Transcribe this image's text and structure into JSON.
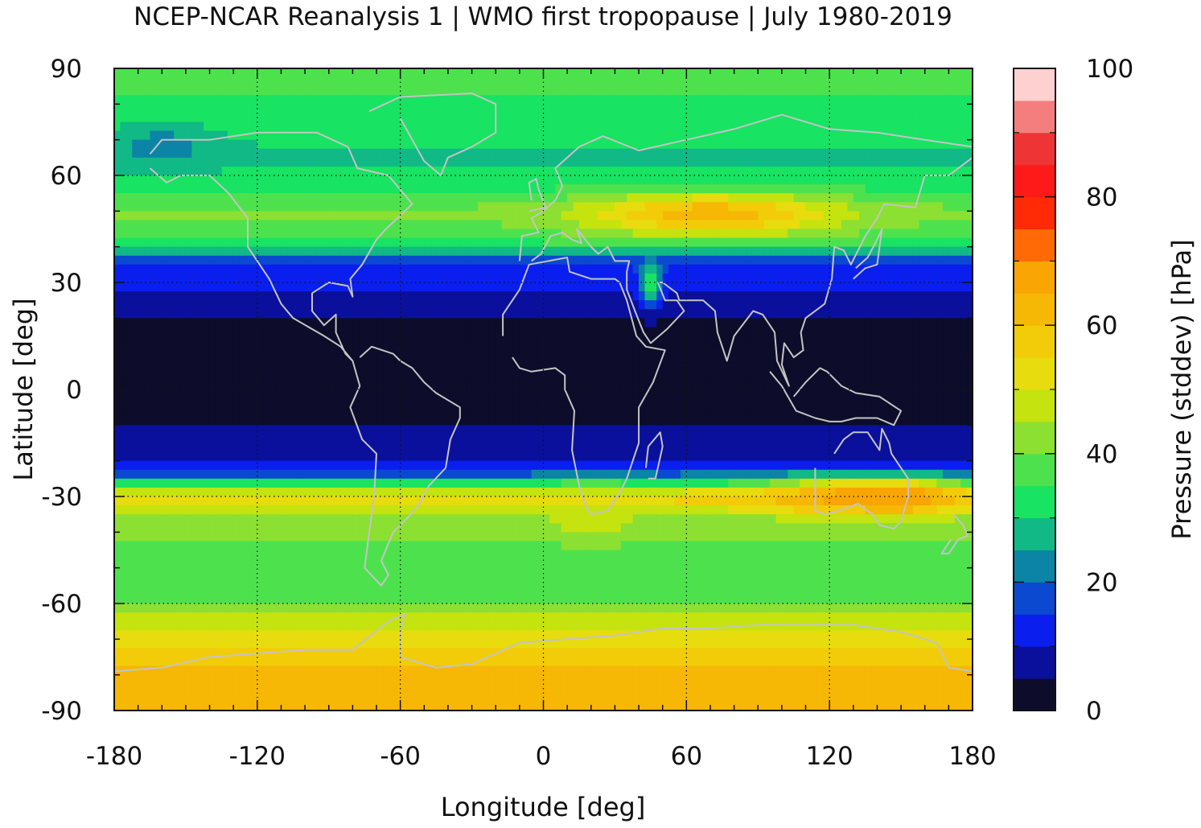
{
  "chart_data": {
    "type": "heatmap",
    "title": "NCEP-NCAR Reanalysis 1 | WMO first tropopause | July 1980-2019",
    "xlabel": "Longitude [deg]",
    "ylabel": "Latitude [deg]",
    "xlim": [
      -180,
      180
    ],
    "ylim": [
      -90,
      90
    ],
    "xticks": [
      "-180",
      "-120",
      "-60",
      "0",
      "60",
      "120",
      "180"
    ],
    "yticks": [
      "90",
      "60",
      "30",
      "0",
      "-30",
      "-60",
      "-90"
    ],
    "grid": true,
    "colorbar": {
      "label": "Pressure (stddev) [hPa]",
      "range": [
        0,
        100
      ],
      "ticks": [
        "100",
        "80",
        "60",
        "40",
        "20",
        "0"
      ],
      "levels": [
        {
          "from": 0,
          "to": 5,
          "color": "#0d0d2b"
        },
        {
          "from": 5,
          "to": 10,
          "color": "#0a109c"
        },
        {
          "from": 10,
          "to": 15,
          "color": "#0a1fee"
        },
        {
          "from": 15,
          "to": 20,
          "color": "#0a49d0"
        },
        {
          "from": 20,
          "to": 25,
          "color": "#0b84a6"
        },
        {
          "from": 25,
          "to": 30,
          "color": "#10b985"
        },
        {
          "from": 30,
          "to": 35,
          "color": "#18e362"
        },
        {
          "from": 35,
          "to": 40,
          "color": "#4de24d"
        },
        {
          "from": 40,
          "to": 45,
          "color": "#8be032"
        },
        {
          "from": 45,
          "to": 50,
          "color": "#c5e30e"
        },
        {
          "from": 50,
          "to": 55,
          "color": "#e7dc0e"
        },
        {
          "from": 55,
          "to": 60,
          "color": "#f2cc09"
        },
        {
          "from": 60,
          "to": 65,
          "color": "#f6b705"
        },
        {
          "from": 65,
          "to": 70,
          "color": "#f9a503"
        },
        {
          "from": 70,
          "to": 75,
          "color": "#ff6a06"
        },
        {
          "from": 75,
          "to": 80,
          "color": "#ff2a06"
        },
        {
          "from": 80,
          "to": 85,
          "color": "#ff1a1a"
        },
        {
          "from": 85,
          "to": 90,
          "color": "#ee3434"
        },
        {
          "from": 90,
          "to": 95,
          "color": "#f47e7e"
        },
        {
          "from": 95,
          "to": 100,
          "color": "#ffd0d0"
        }
      ]
    },
    "zonal_profile": {
      "lat": [
        90,
        82,
        75,
        66,
        58,
        50,
        42,
        36,
        30,
        24,
        15,
        5,
        -5,
        -15,
        -22,
        -26,
        -30,
        -36,
        -45,
        -55,
        -62,
        -70,
        -80,
        -90
      ],
      "value": [
        36,
        35,
        33,
        29,
        32,
        41,
        37,
        16,
        11,
        7,
        3,
        3,
        3,
        7,
        11,
        31,
        58,
        43,
        38,
        36,
        43,
        53,
        63,
        60
      ]
    },
    "anomalies": [
      {
        "lon": 70,
        "lat": 49,
        "sigma_lon": 35,
        "sigma_lat": 4,
        "value": 64
      },
      {
        "lon": 45,
        "lat": 30,
        "sigma_lon": 3,
        "sigma_lat": 4,
        "value": 38
      },
      {
        "lon": 150,
        "lat": -30,
        "sigma_lon": 8,
        "sigma_lat": 2,
        "value": 82
      },
      {
        "lon": 135,
        "lat": -30,
        "sigma_lon": 28,
        "sigma_lat": 3.5,
        "value": 68
      },
      {
        "lon": -160,
        "lat": 68,
        "sigma_lon": 15,
        "sigma_lat": 5,
        "value": 23
      },
      {
        "lon": 20,
        "lat": -35,
        "sigma_lon": 12,
        "sigma_lat": 5,
        "value": 50
      }
    ]
  }
}
